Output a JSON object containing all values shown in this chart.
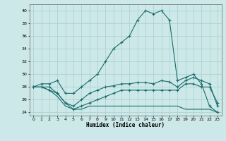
{
  "xlabel": "Humidex (Indice chaleur)",
  "bg_color": "#cce8e8",
  "grid_color": "#aacece",
  "line_color": "#1a6b6b",
  "xlim": [
    -0.5,
    23.5
  ],
  "ylim": [
    23.5,
    41.0
  ],
  "yticks": [
    24,
    26,
    28,
    30,
    32,
    34,
    36,
    38,
    40
  ],
  "xticks": [
    0,
    1,
    2,
    3,
    4,
    5,
    6,
    7,
    8,
    9,
    10,
    11,
    12,
    13,
    14,
    15,
    16,
    17,
    18,
    19,
    20,
    21,
    22,
    23
  ],
  "curve1_x": [
    0,
    1,
    2,
    3,
    4,
    5,
    6,
    7,
    8,
    9,
    10,
    11,
    12,
    13,
    14,
    15,
    16,
    17,
    18,
    19,
    20,
    21,
    22,
    23
  ],
  "curve1_y": [
    28,
    28.5,
    28.5,
    29,
    27,
    27,
    28,
    29,
    30,
    32,
    34,
    35,
    36,
    38.5,
    40,
    39.5,
    40,
    38.5,
    29,
    29.5,
    30,
    28.5,
    25,
    24
  ],
  "curve2_x": [
    0,
    1,
    2,
    3,
    4,
    5,
    6,
    7,
    8,
    9,
    10,
    11,
    12,
    13,
    14,
    15,
    16,
    17,
    18,
    19,
    20,
    21,
    22,
    23
  ],
  "curve2_y": [
    28,
    28,
    28,
    27,
    25.5,
    25,
    26,
    27,
    27.5,
    28,
    28.2,
    28.5,
    28.5,
    28.7,
    28.7,
    28.5,
    29,
    28.8,
    28,
    29,
    29.5,
    29,
    28.5,
    25
  ],
  "curve3_x": [
    0,
    1,
    2,
    3,
    4,
    5,
    6,
    7,
    8,
    9,
    10,
    11,
    12,
    13,
    14,
    15,
    16,
    17,
    18,
    19,
    20,
    21,
    22,
    23
  ],
  "curve3_y": [
    28,
    28,
    27.5,
    27,
    25.5,
    24.5,
    25,
    25.5,
    26,
    26.5,
    27,
    27.5,
    27.5,
    27.5,
    27.5,
    27.5,
    27.5,
    27.5,
    27.5,
    28.5,
    28.5,
    28,
    28,
    25.5
  ],
  "curve4_x": [
    0,
    1,
    2,
    3,
    4,
    5,
    6,
    7,
    8,
    9,
    10,
    11,
    12,
    13,
    14,
    15,
    16,
    17,
    18,
    19,
    20,
    21,
    22,
    23
  ],
  "curve4_y": [
    28,
    28,
    27.5,
    26.5,
    25,
    24.5,
    24.5,
    25,
    25,
    25,
    25,
    25,
    25,
    25,
    25,
    25,
    25,
    25,
    25,
    24.5,
    24.5,
    24.5,
    24.5,
    24
  ]
}
